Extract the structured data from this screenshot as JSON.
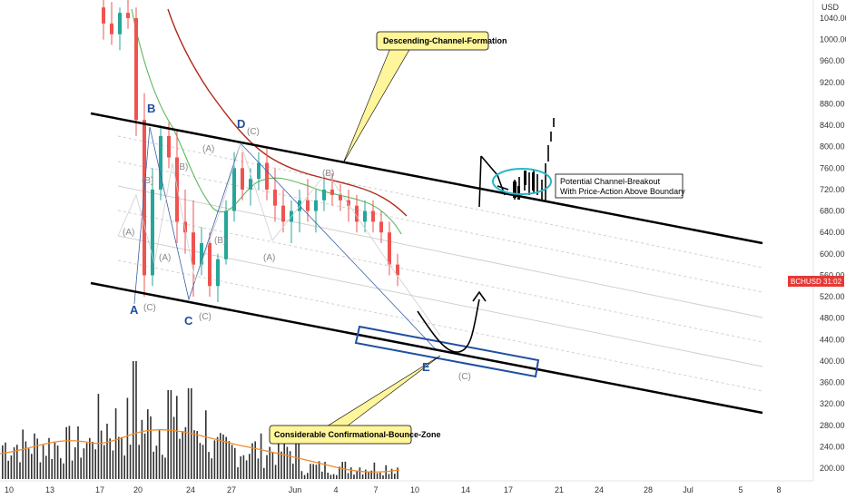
{
  "chart_data": {
    "type": "candlestick",
    "symbol": "BCHUSD",
    "currency_label": "USD",
    "last_price_tag": "BCHUSD",
    "countdown": "31:02",
    "yaxis": {
      "ticks": [
        200,
        240,
        280,
        320,
        360,
        400,
        440,
        480,
        520,
        560,
        600,
        640,
        680,
        720,
        760,
        800,
        840,
        880,
        920,
        960,
        1000,
        1040
      ],
      "tick_labels": [
        "200.00",
        "240.00",
        "280.00",
        "320.00",
        "360.00",
        "400.00",
        "440.00",
        "480.00",
        "520.00",
        "560.00",
        "600.00",
        "640.00",
        "680.00",
        "720.00",
        "760.00",
        "800.00",
        "840.00",
        "880.00",
        "920.00",
        "960.00",
        "1000.00",
        "1040.00"
      ]
    },
    "xaxis": {
      "tick_labels": [
        "10",
        "13",
        "17",
        "20",
        "24",
        "27",
        "Jun",
        "4",
        "7",
        "10",
        "14",
        "17",
        "21",
        "24",
        "28",
        "Jul",
        "5",
        "8"
      ]
    },
    "candles": [
      [
        1060,
        1080,
        1000,
        1030
      ],
      [
        1030,
        1070,
        990,
        1010
      ],
      [
        1010,
        1060,
        980,
        1050
      ],
      [
        1050,
        1075,
        1020,
        1040
      ],
      [
        1040,
        1060,
        820,
        850
      ],
      [
        850,
        900,
        520,
        560
      ],
      [
        560,
        760,
        540,
        720
      ],
      [
        720,
        840,
        700,
        820
      ],
      [
        820,
        845,
        760,
        780
      ],
      [
        780,
        830,
        620,
        660
      ],
      [
        660,
        720,
        600,
        640
      ],
      [
        640,
        700,
        520,
        580
      ],
      [
        580,
        650,
        560,
        620
      ],
      [
        620,
        640,
        520,
        540
      ],
      [
        540,
        600,
        510,
        590
      ],
      [
        590,
        700,
        580,
        680
      ],
      [
        680,
        790,
        660,
        760
      ],
      [
        760,
        790,
        700,
        720
      ],
      [
        720,
        760,
        690,
        740
      ],
      [
        740,
        790,
        720,
        770
      ],
      [
        770,
        800,
        700,
        720
      ],
      [
        720,
        760,
        660,
        690
      ],
      [
        690,
        720,
        640,
        660
      ],
      [
        660,
        700,
        620,
        680
      ],
      [
        680,
        720,
        640,
        700
      ],
      [
        700,
        740,
        660,
        680
      ],
      [
        680,
        720,
        640,
        700
      ],
      [
        700,
        740,
        680,
        720
      ],
      [
        720,
        750,
        690,
        710
      ],
      [
        710,
        730,
        680,
        700
      ],
      [
        700,
        720,
        660,
        690
      ],
      [
        690,
        710,
        640,
        660
      ],
      [
        660,
        700,
        640,
        680
      ],
      [
        680,
        700,
        640,
        660
      ],
      [
        660,
        680,
        620,
        640
      ],
      [
        640,
        660,
        560,
        580
      ],
      [
        580,
        600,
        540,
        560
      ]
    ],
    "annotations": {
      "channel_label": "Descending-Channel-Formation",
      "bounce_label": "Considerable Confirmational-Bounce-Zone",
      "breakout_note_line1": "Potential Channel-Breakout",
      "breakout_note_line2": "With Price-Action Above Boundary",
      "wave_labels_primary": [
        "A",
        "B",
        "C",
        "D",
        "E"
      ],
      "wave_labels_secondary": [
        "(A)",
        "(B)",
        "(C)"
      ]
    }
  }
}
